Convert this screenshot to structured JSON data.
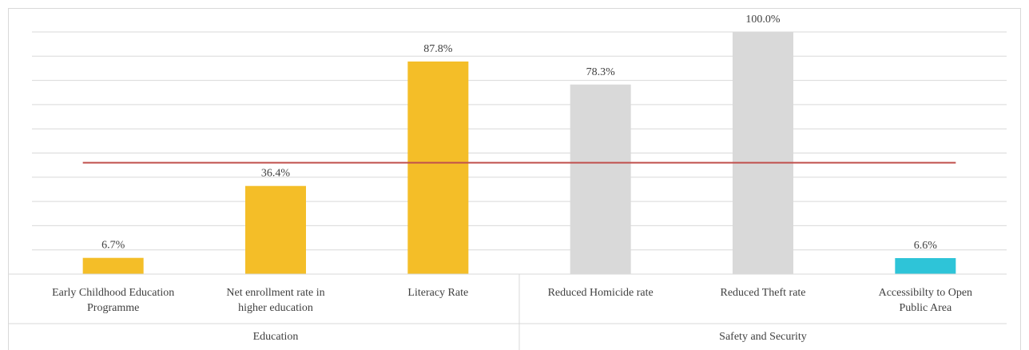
{
  "chart_data": {
    "type": "bar",
    "title": "",
    "xlabel": "",
    "ylabel": "",
    "ylim": [
      0,
      100
    ],
    "gridlines": true,
    "legend": "none",
    "categories": [
      {
        "label": [
          "Early Childhood Education",
          "Programme"
        ],
        "group": "Education",
        "value": 6.7,
        "data_label": "6.7%",
        "color": "#F4BE28"
      },
      {
        "label": [
          "Net enrollment rate in",
          "higher education"
        ],
        "group": "Education",
        "value": 36.4,
        "data_label": "36.4%",
        "color": "#F4BE28"
      },
      {
        "label": [
          "Literacy Rate"
        ],
        "group": "Education",
        "value": 87.8,
        "data_label": "87.8%",
        "color": "#F4BE28"
      },
      {
        "label": [
          "Reduced Homicide rate"
        ],
        "group": "Safety and Security",
        "value": 78.3,
        "data_label": "78.3%",
        "color": "#D9D9D9"
      },
      {
        "label": [
          "Reduced Theft rate"
        ],
        "group": "Safety and Security",
        "value": 100.0,
        "data_label": "100.0%",
        "color": "#D9D9D9"
      },
      {
        "label": [
          "Accessibilty to Open",
          "Public Area"
        ],
        "group": "Safety and Security",
        "value": 6.6,
        "data_label": "6.6%",
        "color": "#2EC4D8"
      }
    ],
    "groups": [
      "Education",
      "Safety and Security"
    ],
    "reference_line": {
      "value": 46.0,
      "color": "#C0504D"
    }
  }
}
